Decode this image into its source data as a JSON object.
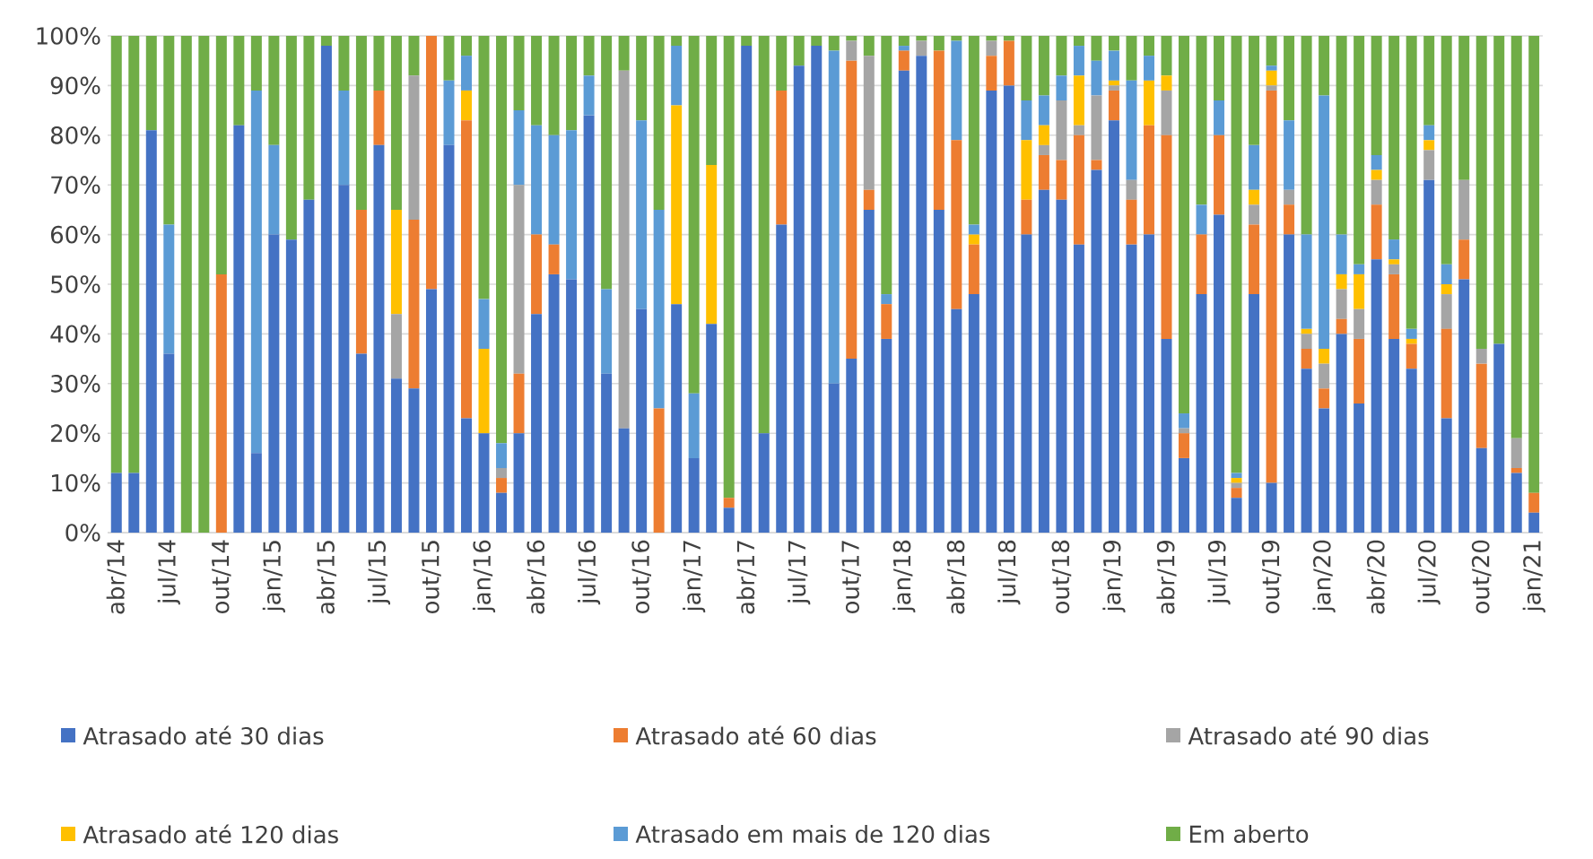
{
  "chart_data": {
    "type": "bar",
    "stacked": true,
    "grid": "y",
    "legend": "bottom",
    "categories": [
      "abr/14",
      null,
      null,
      "jul/14",
      null,
      null,
      "out/14",
      null,
      null,
      "jan/15",
      null,
      null,
      "abr/15",
      null,
      null,
      "jul/15",
      null,
      null,
      "out/15",
      null,
      null,
      "jan/16",
      null,
      null,
      "abr/16",
      null,
      null,
      "jul/16",
      null,
      null,
      "out/16",
      null,
      null,
      "jan/17",
      null,
      null,
      "abr/17",
      null,
      null,
      "jul/17",
      null,
      null,
      "out/17",
      null,
      null,
      "jan/18",
      null,
      null,
      "abr/18",
      null,
      null,
      "jul/18",
      null,
      null,
      "out/18",
      null,
      null,
      "jan/19",
      null,
      null,
      "abr/19",
      null,
      null,
      "jul/19",
      null,
      null,
      "out/19",
      null,
      null,
      "jan/20",
      null,
      null,
      "abr/20",
      null,
      null,
      "jul/20",
      null,
      null,
      "out/20",
      null,
      null,
      "jan/21"
    ],
    "ylim": [
      0,
      100
    ],
    "yticks": [
      {
        "value": 0,
        "label": "0%"
      },
      {
        "value": 10,
        "label": "10%"
      },
      {
        "value": 20,
        "label": "20%"
      },
      {
        "value": 30,
        "label": "30%"
      },
      {
        "value": 40,
        "label": "40%"
      },
      {
        "value": 50,
        "label": "50%"
      },
      {
        "value": 60,
        "label": "60%"
      },
      {
        "value": 70,
        "label": "70%"
      },
      {
        "value": 80,
        "label": "80%"
      },
      {
        "value": 90,
        "label": "90%"
      },
      {
        "value": 100,
        "label": "100%"
      }
    ],
    "series": [
      {
        "name": "Atrasado até 30 dias",
        "color": "#4472c4",
        "values": [
          12,
          12,
          81,
          36,
          0,
          0,
          0,
          82,
          16,
          60,
          59,
          67,
          98,
          70,
          36,
          78,
          31,
          29,
          49,
          78,
          23,
          20,
          8,
          20,
          44,
          52,
          51,
          84,
          32,
          21,
          45,
          0,
          46,
          15,
          42,
          5,
          98,
          20,
          62,
          94,
          98,
          30,
          35,
          65,
          39,
          93,
          96,
          65,
          45,
          48,
          89,
          90,
          60,
          69,
          67,
          58,
          73,
          83,
          58,
          60,
          39,
          15,
          48,
          64,
          7,
          48,
          10,
          60,
          33,
          25,
          40,
          26,
          55,
          39,
          33,
          71,
          23,
          51,
          17,
          38,
          12,
          4
        ]
      },
      {
        "name": "Atrasado até 60 dias",
        "color": "#ed7d31",
        "values": [
          0,
          0,
          0,
          0,
          0,
          0,
          52,
          0,
          0,
          0,
          0,
          0,
          0,
          0,
          29,
          11,
          0,
          34,
          51,
          0,
          60,
          0,
          3,
          12,
          16,
          6,
          0,
          0,
          0,
          0,
          0,
          25,
          0,
          0,
          0,
          2,
          0,
          0,
          27,
          0,
          0,
          0,
          60,
          4,
          7,
          4,
          0,
          32,
          34,
          10,
          7,
          9,
          7,
          7,
          8,
          22,
          2,
          6,
          9,
          22,
          41,
          5,
          12,
          16,
          2,
          14,
          79,
          6,
          4,
          4,
          3,
          13,
          11,
          13,
          5,
          0,
          18,
          8,
          17,
          0,
          1,
          4
        ]
      },
      {
        "name": "Atrasado até 90 dias",
        "color": "#a5a5a5",
        "values": [
          0,
          0,
          0,
          0,
          0,
          0,
          0,
          0,
          0,
          0,
          0,
          0,
          0,
          0,
          0,
          0,
          13,
          29,
          0,
          0,
          0,
          0,
          2,
          38,
          0,
          0,
          0,
          0,
          0,
          72,
          0,
          0,
          0,
          0,
          0,
          0,
          0,
          0,
          0,
          0,
          0,
          0,
          4,
          27,
          0,
          0,
          3,
          0,
          0,
          0,
          3,
          0,
          0,
          2,
          12,
          2,
          13,
          1,
          4,
          0,
          9,
          1,
          0,
          0,
          1,
          4,
          1,
          3,
          3,
          5,
          6,
          6,
          5,
          2,
          0,
          6,
          7,
          12,
          3,
          0,
          6,
          0
        ]
      },
      {
        "name": "Atrasado até 120 dias",
        "color": "#ffc000",
        "values": [
          0,
          0,
          0,
          0,
          0,
          0,
          0,
          0,
          0,
          0,
          0,
          0,
          0,
          0,
          0,
          0,
          21,
          0,
          0,
          0,
          6,
          17,
          0,
          0,
          0,
          0,
          0,
          0,
          0,
          0,
          0,
          0,
          40,
          0,
          32,
          0,
          0,
          0,
          0,
          0,
          0,
          0,
          0,
          0,
          0,
          0,
          0,
          0,
          0,
          2,
          0,
          0,
          12,
          4,
          0,
          10,
          0,
          1,
          0,
          9,
          3,
          0,
          0,
          0,
          1,
          3,
          3,
          0,
          1,
          3,
          3,
          7,
          2,
          1,
          1,
          2,
          2,
          0,
          0,
          0,
          0,
          0
        ]
      },
      {
        "name": "Atrasado em mais de 120 dias",
        "color": "#5b9bd5",
        "values": [
          0,
          0,
          0,
          26,
          0,
          0,
          0,
          0,
          73,
          18,
          0,
          0,
          0,
          19,
          0,
          0,
          0,
          0,
          0,
          13,
          7,
          10,
          5,
          15,
          22,
          22,
          30,
          8,
          17,
          0,
          38,
          40,
          12,
          13,
          0,
          0,
          0,
          0,
          0,
          0,
          0,
          67,
          0,
          0,
          2,
          1,
          0,
          0,
          20,
          2,
          0,
          0,
          8,
          6,
          5,
          6,
          7,
          6,
          20,
          5,
          0,
          3,
          6,
          7,
          1,
          9,
          1,
          14,
          19,
          51,
          8,
          2,
          3,
          4,
          2,
          3,
          4,
          0,
          0,
          0,
          0,
          0
        ]
      },
      {
        "name": "Em aberto",
        "color": "#70ad47",
        "values": [
          88,
          88,
          19,
          38,
          100,
          100,
          48,
          18,
          11,
          22,
          41,
          33,
          2,
          11,
          35,
          11,
          35,
          8,
          0,
          9,
          4,
          53,
          82,
          15,
          18,
          20,
          19,
          8,
          51,
          7,
          17,
          35,
          2,
          72,
          26,
          93,
          2,
          80,
          11,
          6,
          2,
          3,
          1,
          4,
          52,
          2,
          1,
          3,
          1,
          38,
          1,
          1,
          13,
          12,
          8,
          2,
          5,
          3,
          9,
          4,
          8,
          76,
          34,
          13,
          88,
          22,
          6,
          17,
          40,
          12,
          40,
          46,
          24,
          41,
          59,
          18,
          46,
          29,
          63,
          62,
          81,
          92
        ]
      }
    ]
  }
}
